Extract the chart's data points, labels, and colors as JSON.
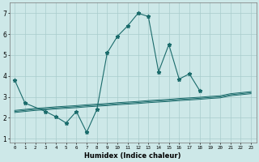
{
  "x": [
    0,
    1,
    2,
    3,
    4,
    5,
    6,
    7,
    8,
    9,
    10,
    11,
    12,
    13,
    14,
    15,
    16,
    17,
    18,
    19,
    20,
    21,
    22,
    23
  ],
  "line_main": [
    3.8,
    2.7,
    null,
    2.3,
    2.05,
    1.75,
    2.3,
    1.3,
    2.4,
    5.1,
    5.9,
    6.4,
    7.0,
    6.85,
    4.2,
    5.5,
    3.85,
    4.1,
    3.3,
    null,
    null,
    null,
    null,
    null
  ],
  "line_straight1": [
    2.25,
    2.3,
    2.35,
    2.38,
    2.42,
    2.45,
    2.48,
    2.52,
    2.55,
    2.58,
    2.62,
    2.65,
    2.68,
    2.72,
    2.75,
    2.78,
    2.82,
    2.85,
    2.88,
    2.92,
    2.95,
    3.05,
    3.1,
    3.15
  ],
  "line_straight2": [
    2.3,
    2.35,
    2.4,
    2.43,
    2.47,
    2.5,
    2.53,
    2.57,
    2.6,
    2.63,
    2.67,
    2.7,
    2.73,
    2.77,
    2.8,
    2.83,
    2.87,
    2.9,
    2.93,
    2.97,
    3.0,
    3.1,
    3.15,
    3.2
  ],
  "line_straight3": [
    2.35,
    2.4,
    2.45,
    2.48,
    2.52,
    2.55,
    2.58,
    2.62,
    2.65,
    2.68,
    2.72,
    2.75,
    2.78,
    2.82,
    2.85,
    2.88,
    2.92,
    2.95,
    2.98,
    3.02,
    3.05,
    3.15,
    3.2,
    3.25
  ],
  "bg_color": "#cde8e8",
  "grid_color": "#a8cccc",
  "line_color": "#1a6b6b",
  "xlabel": "Humidex (Indice chaleur)",
  "xlim": [
    -0.5,
    23.5
  ],
  "ylim": [
    0.8,
    7.5
  ],
  "yticks": [
    1,
    2,
    3,
    4,
    5,
    6,
    7
  ],
  "xticks": [
    0,
    1,
    2,
    3,
    4,
    5,
    6,
    7,
    8,
    9,
    10,
    11,
    12,
    13,
    14,
    15,
    16,
    17,
    18,
    19,
    20,
    21,
    22,
    23
  ]
}
